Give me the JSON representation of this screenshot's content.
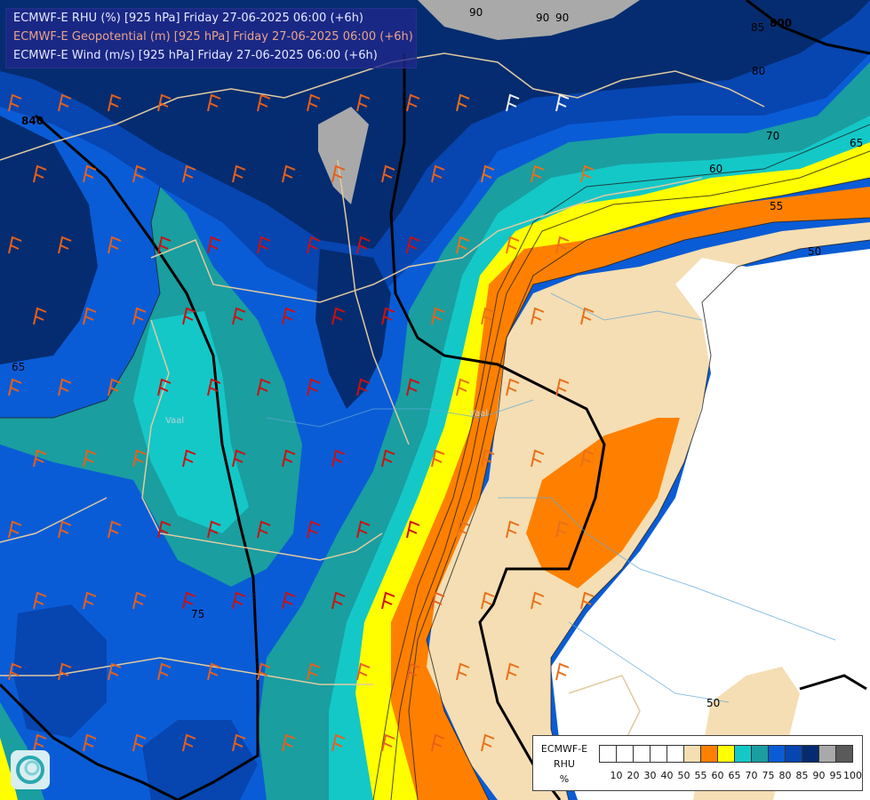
{
  "title_lines": [
    "ECMWF-E RHU (%) [925 hPa] Friday 27-06-2025 06:00 (+6h)",
    "ECMWF-E Geopotential (m) [925 hPa] Friday 27-06-2025 06:00 (+6h)",
    "ECMWF-E Wind (m/s) [925 hPa] Friday 27-06-2025 06:00 (+6h)"
  ],
  "legend": {
    "title": [
      "ECMWF-E",
      "RHU",
      "%"
    ],
    "ticks": [
      "10",
      "20",
      "30",
      "40",
      "50",
      "55",
      "60",
      "65",
      "70",
      "75",
      "80",
      "85",
      "90",
      "95",
      "100"
    ],
    "colors": [
      "#ffffff",
      "#ffffff",
      "#ffffff",
      "#ffffff",
      "#ffffff",
      "#f5deb3",
      "#ff8000",
      "#ffff00",
      "#14c8c8",
      "#1a9ea0",
      "#0a5cd6",
      "#0745b0",
      "#052c70",
      "#a9a9a9",
      "#5a5a5a"
    ]
  },
  "contour_labels": [
    "90",
    "90",
    "85",
    "80",
    "70",
    "65",
    "60",
    "55",
    "50",
    "50",
    "75",
    "65",
    "90",
    "800",
    "840"
  ],
  "river_labels": [
    "Vaal",
    "Vaal"
  ],
  "colors": {
    "rh_95": "#a9a9a9",
    "rh_90": "#052c70",
    "rh_85": "#0745b0",
    "rh_80": "#0a5cd6",
    "rh_75": "#1a9ea0",
    "rh_70": "#14c8c8",
    "rh_65": "#ffff00",
    "rh_60": "#ff8000",
    "rh_55": "#f5deb3",
    "rh_below_50": "#ffffff"
  }
}
